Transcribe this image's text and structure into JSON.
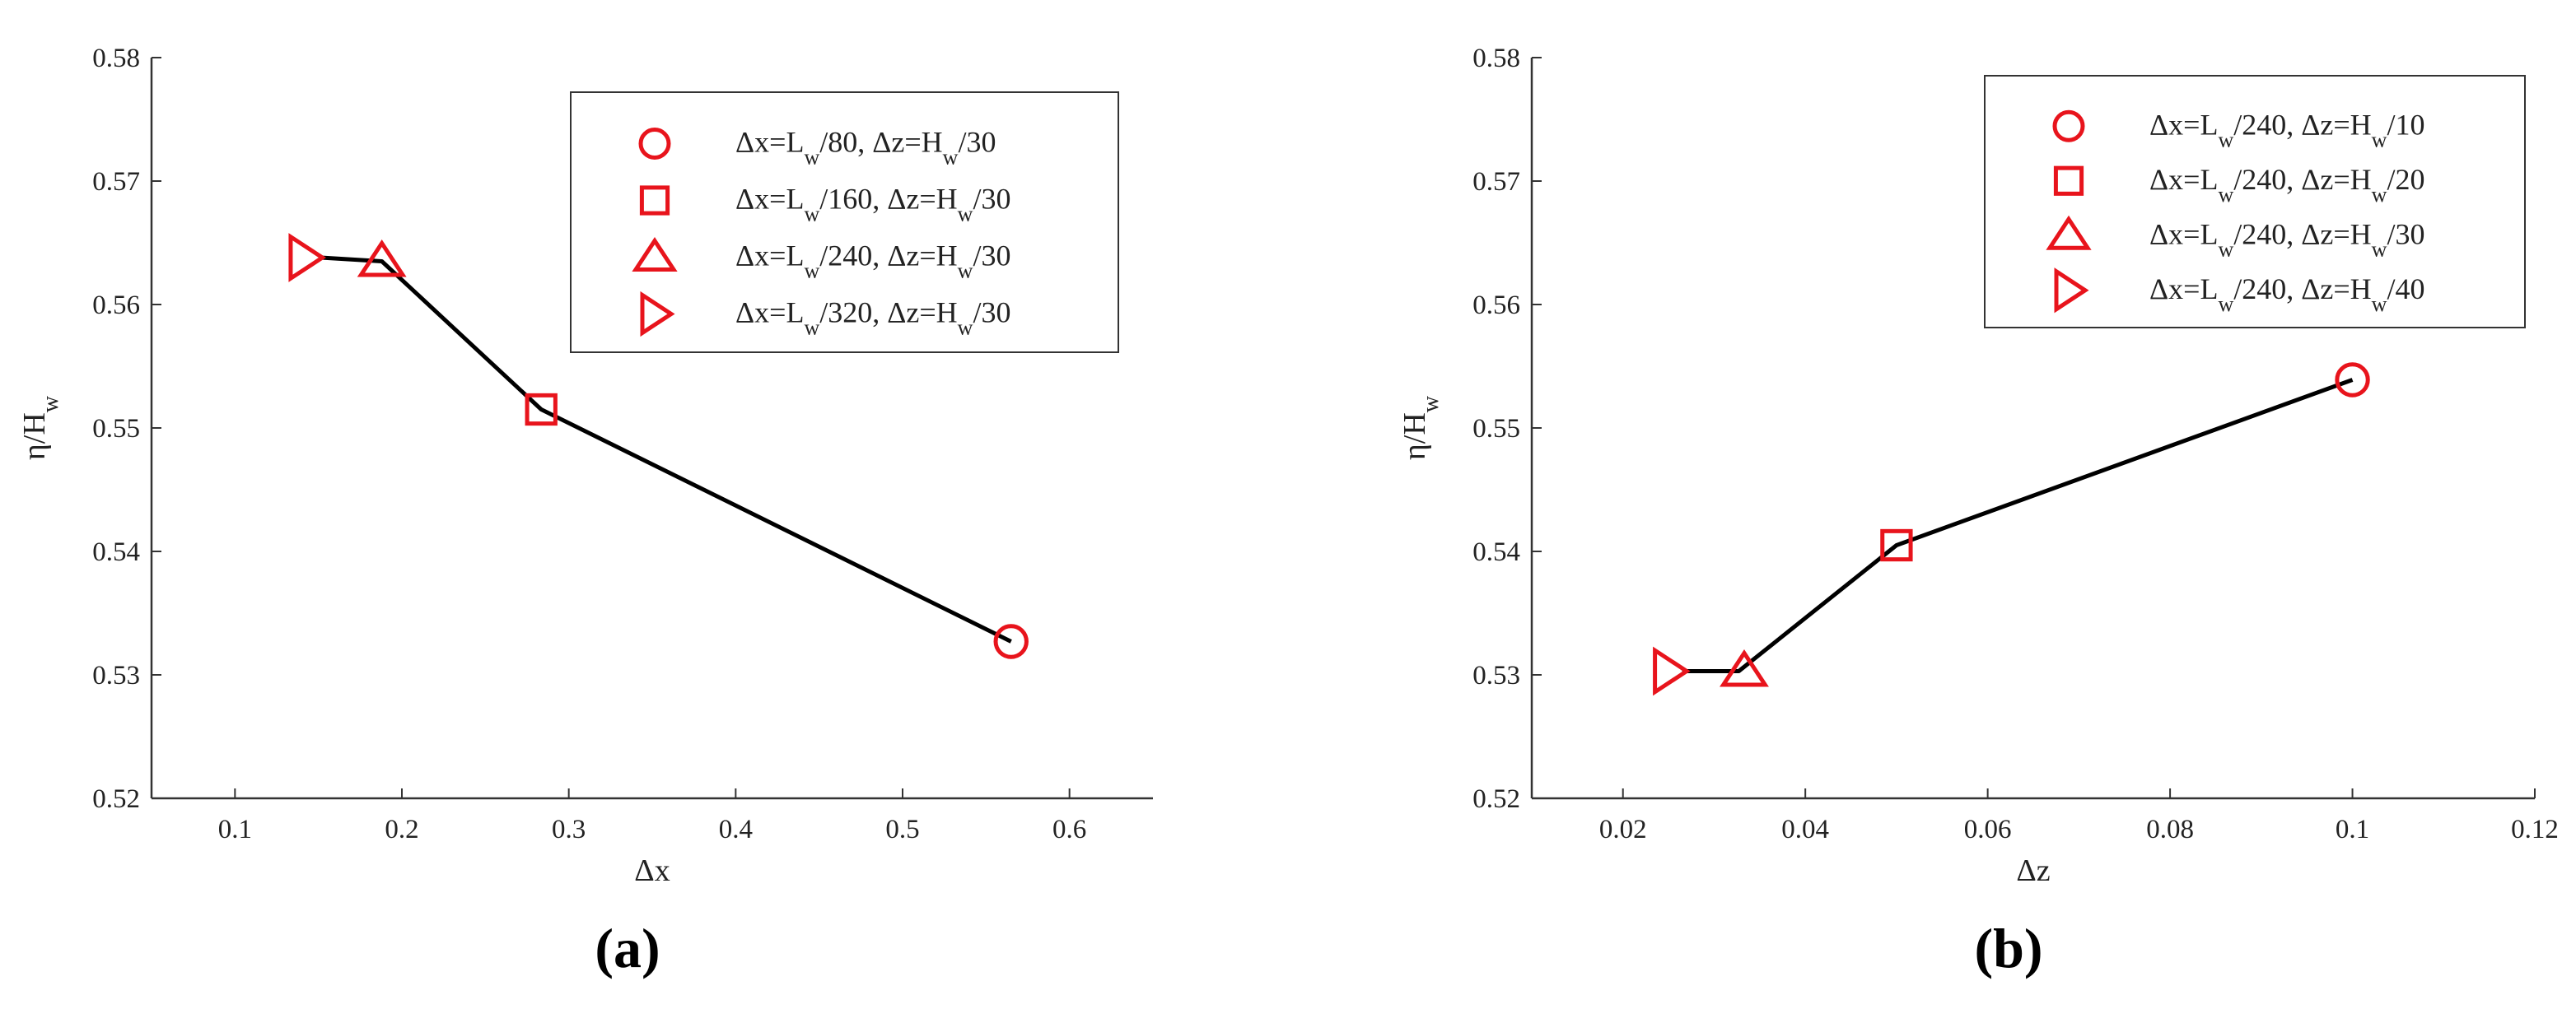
{
  "colors": {
    "marker": "#e8141c",
    "line": "#000000",
    "axis": "#333333"
  },
  "chart_data": [
    {
      "type": "line",
      "panel_label": "(a)",
      "xlabel": "Δx",
      "ylabel": "η/Hw",
      "xlim": [
        0.05,
        0.65
      ],
      "ylim": [
        0.52,
        0.58
      ],
      "xticks": [
        0.1,
        0.2,
        0.3,
        0.4,
        0.5,
        0.6
      ],
      "yticks": [
        0.52,
        0.53,
        0.54,
        0.55,
        0.56,
        0.57,
        0.58
      ],
      "grid": false,
      "legend_position": "top-right",
      "line": {
        "x": [
          0.1515,
          0.188,
          0.2835,
          0.565
        ],
        "y": [
          0.5638,
          0.5635,
          0.5515,
          0.5327
        ]
      },
      "series": [
        {
          "name": "Δx=Lw/80, Δz=Hw/30",
          "legend_parts": [
            "Δx=L",
            "w",
            "/80, Δz=H",
            "w",
            "/30"
          ],
          "marker": "circle",
          "x": [
            0.565
          ],
          "y": [
            0.5327
          ]
        },
        {
          "name": "Δx=Lw/160, Δz=Hw/30",
          "legend_parts": [
            "Δx=L",
            "w",
            "/160, Δz=H",
            "w",
            "/30"
          ],
          "marker": "square",
          "x": [
            0.2835
          ],
          "y": [
            0.5515
          ]
        },
        {
          "name": "Δx=Lw/240, Δz=Hw/30",
          "legend_parts": [
            "Δx=L",
            "w",
            "/240, Δz=H",
            "w",
            "/30"
          ],
          "marker": "triangle-up",
          "x": [
            0.188
          ],
          "y": [
            0.5635
          ]
        },
        {
          "name": "Δx=Lw/320, Δz=Hw/30",
          "legend_parts": [
            "Δx=L",
            "w",
            "/320, Δz=H",
            "w",
            "/30"
          ],
          "marker": "triangle-right",
          "x": [
            0.1415
          ],
          "y": [
            0.5638
          ]
        }
      ]
    },
    {
      "type": "line",
      "panel_label": "(b)",
      "xlabel": "Δz",
      "ylabel": "η/Hw",
      "xlim": [
        0.01,
        0.12
      ],
      "ylim": [
        0.52,
        0.58
      ],
      "xticks": [
        0.02,
        0.04,
        0.06,
        0.08,
        0.1,
        0.12
      ],
      "yticks": [
        0.52,
        0.53,
        0.54,
        0.55,
        0.56,
        0.57,
        0.58
      ],
      "grid": false,
      "legend_position": "top-right",
      "line": {
        "x": [
          0.0265,
          0.0327,
          0.05,
          0.1
        ],
        "y": [
          0.5303,
          0.5303,
          0.5405,
          0.5539
        ]
      },
      "series": [
        {
          "name": "Δx=Lw/240, Δz=Hw/10",
          "legend_parts": [
            "Δx=L",
            "w",
            "/240, Δz=H",
            "w",
            "/10"
          ],
          "marker": "circle",
          "x": [
            0.1
          ],
          "y": [
            0.5539
          ]
        },
        {
          "name": "Δx=Lw/240, Δz=Hw/20",
          "legend_parts": [
            "Δx=L",
            "w",
            "/240, Δz=H",
            "w",
            "/20"
          ],
          "marker": "square",
          "x": [
            0.05
          ],
          "y": [
            0.5405
          ]
        },
        {
          "name": "Δx=Lw/240, Δz=Hw/30",
          "legend_parts": [
            "Δx=L",
            "w",
            "/240, Δz=H",
            "w",
            "/30"
          ],
          "marker": "triangle-up",
          "x": [
            0.0333
          ],
          "y": [
            0.5303
          ]
        },
        {
          "name": "Δx=Lw/240, Δz=Hw/40",
          "legend_parts": [
            "Δx=L",
            "w",
            "/240, Δz=H",
            "w",
            "/40"
          ],
          "marker": "triangle-right",
          "x": [
            0.025
          ],
          "y": [
            0.5303
          ]
        }
      ]
    }
  ]
}
